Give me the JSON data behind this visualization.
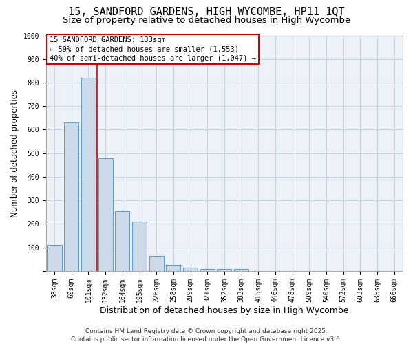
{
  "title": "15, SANDFORD GARDENS, HIGH WYCOMBE, HP11 1QT",
  "subtitle": "Size of property relative to detached houses in High Wycombe",
  "xlabel": "Distribution of detached houses by size in High Wycombe",
  "ylabel": "Number of detached properties",
  "bar_labels": [
    "38sqm",
    "69sqm",
    "101sqm",
    "132sqm",
    "164sqm",
    "195sqm",
    "226sqm",
    "258sqm",
    "289sqm",
    "321sqm",
    "352sqm",
    "383sqm",
    "415sqm",
    "446sqm",
    "478sqm",
    "509sqm",
    "540sqm",
    "572sqm",
    "603sqm",
    "635sqm",
    "666sqm"
  ],
  "bar_values": [
    110,
    630,
    820,
    480,
    255,
    210,
    65,
    25,
    15,
    10,
    10,
    10,
    0,
    0,
    0,
    0,
    0,
    0,
    0,
    0,
    0
  ],
  "bar_color": "#ccd9e8",
  "bar_edge_color": "#5a9bc8",
  "grid_color": "#c8d4e4",
  "bg_color": "#edf2f8",
  "red_line_color": "#cc0000",
  "annotation_line1": "15 SANDFORD GARDENS: 133sqm",
  "annotation_line2": "← 59% of detached houses are smaller (1,553)",
  "annotation_line3": "40% of semi-detached houses are larger (1,047) →",
  "annotation_box_color": "#cc0000",
  "ylim": [
    0,
    1000
  ],
  "yticks": [
    0,
    100,
    200,
    300,
    400,
    500,
    600,
    700,
    800,
    900,
    1000
  ],
  "footer_line1": "Contains HM Land Registry data © Crown copyright and database right 2025.",
  "footer_line2": "Contains public sector information licensed under the Open Government Licence v3.0.",
  "title_fontsize": 11,
  "subtitle_fontsize": 9.5,
  "xlabel_fontsize": 9,
  "ylabel_fontsize": 8.5,
  "tick_fontsize": 7,
  "annot_fontsize": 7.5,
  "footer_fontsize": 6.5
}
